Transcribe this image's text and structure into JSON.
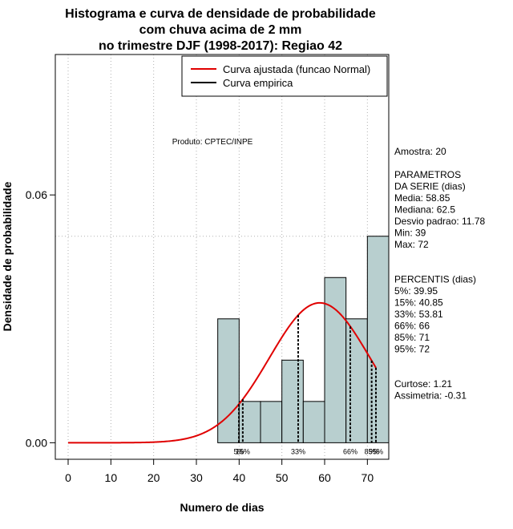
{
  "chart_data": {
    "type": "histogram",
    "title_lines": [
      "Histograma e curva de densidade de probabilidade",
      "com chuva acima de 2 mm",
      "no trimestre DJF (1998-2017): Regiao 42"
    ],
    "xlabel": "Numero de dias",
    "ylabel": "Densidade de probabilidade",
    "xlim": [
      -3,
      75
    ],
    "ylim": [
      -0.004,
      0.094
    ],
    "x_ticks": [
      0,
      10,
      20,
      30,
      40,
      50,
      60,
      70
    ],
    "y_ticks": [
      0.0,
      0.06
    ],
    "y_tick_labels": [
      "0.00",
      "0.06"
    ],
    "bins": [
      {
        "start": 35,
        "end": 40,
        "density": 0.03
      },
      {
        "start": 40,
        "end": 45,
        "density": 0.01
      },
      {
        "start": 45,
        "end": 50,
        "density": 0.01
      },
      {
        "start": 50,
        "end": 55,
        "density": 0.02
      },
      {
        "start": 55,
        "end": 60,
        "density": 0.01
      },
      {
        "start": 60,
        "end": 65,
        "density": 0.04
      },
      {
        "start": 65,
        "end": 70,
        "density": 0.03
      },
      {
        "start": 70,
        "end": 75,
        "density": 0.05
      }
    ],
    "normal_fit": {
      "mean": 58.85,
      "sd": 11.78,
      "x_range": [
        0,
        72
      ]
    },
    "hline": 0.05,
    "legend": [
      {
        "label": "Curva ajustada (funcao Normal)",
        "color": "#e00000"
      },
      {
        "label": "Curva empirica",
        "color": "#000000"
      }
    ],
    "product_label": "Produto: CPTEC/INPE",
    "percentile_markers": [
      {
        "value": 39.95,
        "label": "5%"
      },
      {
        "value": 40.85,
        "label": "15%"
      },
      {
        "value": 53.81,
        "label": "33%"
      },
      {
        "value": 66,
        "label": "66%"
      },
      {
        "value": 71,
        "label": "85%"
      },
      {
        "value": 72,
        "label": "95%"
      }
    ],
    "stats_lines": [
      "Amostra: 20",
      "",
      "PARAMETROS",
      "DA SERIE (dias)",
      "Media: 58.85",
      "Mediana: 62.5",
      "Desvio padrao: 11.78",
      "Min: 39",
      "Max: 72",
      "",
      "",
      "PERCENTIS (dias)",
      "5%: 39.95",
      "15%: 40.85",
      "33%: 53.81",
      "66%: 66",
      "85%: 71",
      "95%: 72",
      "",
      "",
      "Curtose: 1.21",
      "Assimetria: -0.31"
    ],
    "colors": {
      "bar_fill": "#b8cfcf",
      "bar_stroke": "#000000",
      "curve": "#e00000",
      "grid": "#b0b0b0"
    }
  }
}
